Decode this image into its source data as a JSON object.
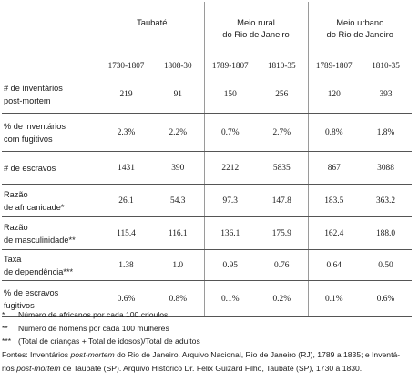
{
  "table": {
    "groups": [
      "Taubaté",
      "Meio rural\ndo Rio de Janeiro",
      "Meio urbano\ndo Rio de Janeiro"
    ],
    "years": [
      "1730-1807",
      "1808-30",
      "1789-1807",
      "1810-35",
      "1789-1807",
      "1810-35"
    ],
    "rows": [
      {
        "label": "# de inventários\npost-mortem",
        "values": [
          "219",
          "91",
          "150",
          "256",
          "120",
          "393"
        ]
      },
      {
        "label": "% de inventários\ncom fugitivos",
        "values": [
          "2.3%",
          "2.2%",
          "0.7%",
          "2.7%",
          "0.8%",
          "1.8%"
        ]
      },
      {
        "label": "# de escravos",
        "values": [
          "1431",
          "390",
          "2212",
          "5835",
          "867",
          "3088"
        ]
      },
      {
        "label": "Razão\nde africanidade*",
        "values": [
          "26.1",
          "54.3",
          "97.3",
          "147.8",
          "183.5",
          "363.2"
        ]
      },
      {
        "label": "Razão\nde masculinidade**",
        "values": [
          "115.4",
          "116.1",
          "136.1",
          "175.9",
          "162.4",
          "188.0"
        ]
      },
      {
        "label": "Taxa\nde dependência***",
        "values": [
          "1.38",
          "1.0",
          "0.95",
          "0.76",
          "0.64",
          "0.50"
        ]
      },
      {
        "label": "% de escravos\nfugitivos",
        "values": [
          "0.6%",
          "0.8%",
          "0.1%",
          "0.2%",
          "0.1%",
          "0.6%"
        ]
      }
    ]
  },
  "footnotes": [
    {
      "mark": "*",
      "text": "Número de africanos por cada 100 crioulos"
    },
    {
      "mark": "**",
      "text": "Número de homens por cada 100 mulheres"
    },
    {
      "mark": "***",
      "text": "(Total de crianças + Total de idosos)/Total de adultos"
    }
  ],
  "sources": {
    "line1_pre": "Fontes: Inventários ",
    "line1_em": "post-mortem",
    "line1_post": " do Rio de Janeiro. Arquivo Nacional, Rio de Janeiro (RJ), 1789 a 1835; e Inventá-",
    "line2_pre": "rios ",
    "line2_em": "post-mortem",
    "line2_post": " de Taubaté (SP). Arquivo Histórico Dr. Felix Guizard Filho, Taubaté (SP), 1730 a 1830."
  }
}
